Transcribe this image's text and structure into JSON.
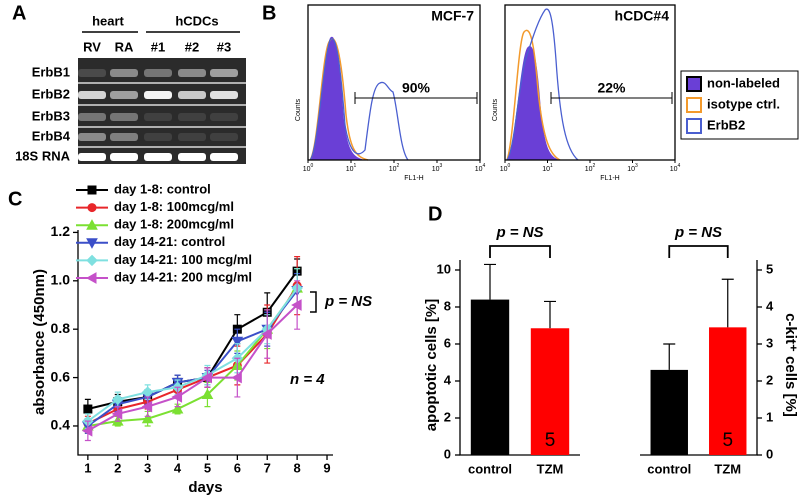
{
  "panel_labels": [
    "A",
    "B",
    "C",
    "D"
  ],
  "gel": {
    "groups": [
      "heart",
      "hCDCs"
    ],
    "lanes": [
      "RV",
      "RA",
      "#1",
      "#2",
      "#3"
    ],
    "genes": [
      "ErbB1",
      "ErbB2",
      "ErbB3",
      "ErbB4",
      "18S RNA"
    ]
  },
  "flow": {
    "x_label": "FL1-H",
    "y_label": "Counts",
    "xticks": [
      {
        "base": "10",
        "exp": "0"
      },
      {
        "base": "10",
        "exp": "1"
      },
      {
        "base": "10",
        "exp": "2"
      },
      {
        "base": "10",
        "exp": "3"
      },
      {
        "base": "10",
        "exp": "4"
      }
    ],
    "plots": [
      {
        "title": "MCF-7",
        "gate": "90%"
      },
      {
        "title": "hCDC#4",
        "gate": "22%"
      }
    ],
    "legend": [
      {
        "name": "non-labeled",
        "color": "#6a3fd6"
      },
      {
        "name": "isotype ctrl.",
        "color": "#f39a2c"
      },
      {
        "name": "ErbB2",
        "color": "#4a5fd0"
      }
    ]
  },
  "chart_data": [
    {
      "type": "line",
      "x_label": "days",
      "y_label": "absorbance (450nm)",
      "x": [
        1,
        2,
        3,
        4,
        5,
        6,
        7,
        8
      ],
      "xlim": [
        0.67,
        9.2
      ],
      "xticks": [
        1,
        2,
        3,
        4,
        5,
        6,
        7,
        8,
        9
      ],
      "ylim": [
        0.28,
        1.21
      ],
      "yticks": [
        0.4,
        0.6,
        0.8,
        {
          "value": 1,
          "label": "1.0"
        },
        1.2
      ],
      "annotations": [
        "p = NS",
        "n = 4"
      ],
      "series": [
        {
          "name": "day 1-8: control",
          "color": "#000000",
          "marker": "square",
          "values": [
            0.47,
            0.5,
            0.52,
            0.58,
            0.6,
            0.8,
            0.87,
            1.04
          ],
          "errors": [
            0.04,
            0.03,
            0.03,
            0.03,
            0.04,
            0.06,
            0.08,
            0.05
          ]
        },
        {
          "name": "day 1-8: 100mcg/ml",
          "color": "#e8262a",
          "marker": "circle",
          "values": [
            0.41,
            0.47,
            0.5,
            0.55,
            0.6,
            0.65,
            0.78,
            0.98
          ],
          "errors": [
            0.03,
            0.03,
            0.03,
            0.03,
            0.04,
            0.08,
            0.12,
            0.12
          ]
        },
        {
          "name": "day 1-8: 200mcg/ml",
          "color": "#7be032",
          "marker": "tri-up",
          "values": [
            0.4,
            0.42,
            0.43,
            0.47,
            0.53,
            0.65,
            0.8,
            0.97
          ],
          "errors": [
            0.03,
            0.02,
            0.03,
            0.02,
            0.05,
            0.06,
            0.08,
            0.08
          ]
        },
        {
          "name": "day 14-21: control",
          "color": "#3b4fc8",
          "marker": "tri-down",
          "values": [
            0.4,
            0.49,
            0.52,
            0.58,
            0.6,
            0.75,
            0.8,
            0.96
          ],
          "errors": [
            0.03,
            0.03,
            0.03,
            0.03,
            0.03,
            0.05,
            0.07,
            0.07
          ]
        },
        {
          "name": "day 14-21: 100 mcg/ml",
          "color": "#7fe0e0",
          "marker": "diamond",
          "values": [
            0.42,
            0.51,
            0.54,
            0.56,
            0.61,
            0.68,
            0.8,
            0.97
          ],
          "errors": [
            0.03,
            0.03,
            0.03,
            0.03,
            0.04,
            0.06,
            0.06,
            0.08
          ]
        },
        {
          "name": "day 14-21: 200 mcg/ml",
          "color": "#c551c9",
          "marker": "tri-left",
          "values": [
            0.38,
            0.45,
            0.48,
            0.52,
            0.6,
            0.6,
            0.78,
            0.9
          ],
          "errors": [
            0.04,
            0.03,
            0.04,
            0.04,
            0.04,
            0.08,
            0.1,
            0.1
          ]
        }
      ]
    },
    {
      "type": "bar",
      "title": "p = NS",
      "y_label": "apoptotic cells [%]",
      "axis_side": "left",
      "categories": [
        "control",
        "TZM"
      ],
      "values": [
        8.4,
        6.85
      ],
      "errors": [
        1.9,
        1.45
      ],
      "colors": [
        "#000000",
        "#ff0000"
      ],
      "n_labels": [
        "5",
        "5"
      ],
      "ylim": [
        0,
        10.54
      ],
      "yticks": [
        0,
        2,
        4,
        6,
        8,
        10
      ]
    },
    {
      "type": "bar",
      "title": "p = NS",
      "y_label": "c-kit⁺ cells [%]",
      "axis_side": "right",
      "categories": [
        "control",
        "TZM"
      ],
      "values": [
        2.3,
        3.45
      ],
      "errors": [
        0.7,
        1.3
      ],
      "colors": [
        "#000000",
        "#ff0000"
      ],
      "n_labels": [
        "5",
        "5"
      ],
      "ylim": [
        0,
        5.27
      ],
      "yticks": [
        0,
        1,
        2,
        3,
        4,
        5
      ]
    }
  ]
}
